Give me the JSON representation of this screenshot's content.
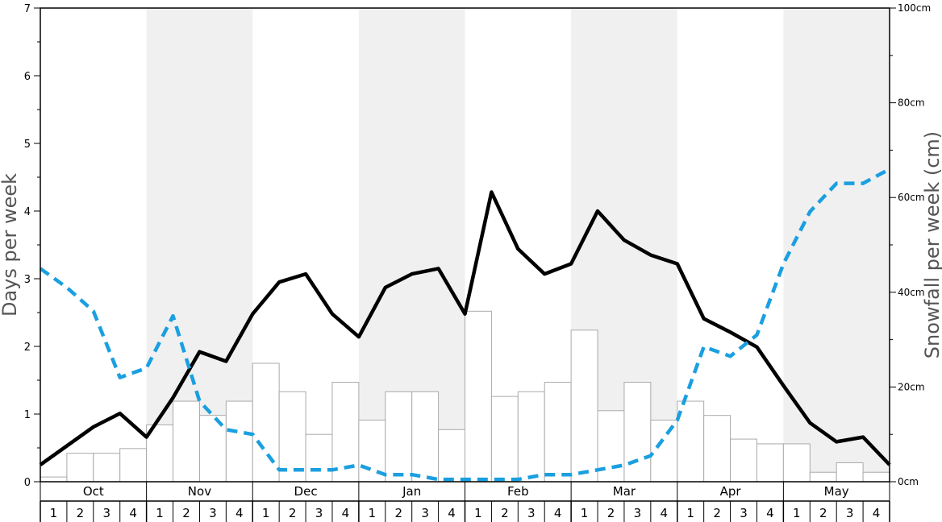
{
  "chart_data": {
    "type": "bar",
    "y_left": {
      "label": "Days per week",
      "range": [
        0,
        7
      ],
      "ticks": [
        "0",
        "1",
        "2",
        "3",
        "4",
        "5",
        "6",
        "7"
      ]
    },
    "y_right": {
      "label": "Snowfall per week (cm)",
      "range": [
        0,
        100
      ],
      "ticks": [
        "0cm",
        "20cm",
        "40cm",
        "60cm",
        "80cm",
        "100cm"
      ]
    },
    "months": [
      "Oct",
      "Nov",
      "Dec",
      "Jan",
      "Feb",
      "Mar",
      "Apr",
      "May"
    ],
    "weeks": [
      "1",
      "2",
      "3",
      "4"
    ],
    "shaded_months": [
      "Nov",
      "Jan",
      "Mar",
      "May"
    ],
    "colors": {
      "bars_fill": "#ffffff",
      "bars_stroke": "#aaaaaa",
      "solid_line": "#000000",
      "dashed_line": "#1a9fe0",
      "shade": "#f0f0f0"
    },
    "series": [
      {
        "kind": "bar",
        "axis": "right",
        "values": [
          1,
          6,
          6,
          7,
          12,
          17,
          14,
          17,
          25,
          19,
          10,
          21,
          13,
          19,
          19,
          11,
          36,
          18,
          19,
          21,
          32,
          15,
          21,
          13,
          17,
          14,
          9,
          8,
          8,
          2,
          4,
          2
        ]
      },
      {
        "kind": "line",
        "style": "solid",
        "axis": "left",
        "values": [
          0.25,
          0.53,
          0.81,
          1.01,
          0.66,
          1.24,
          1.92,
          1.78,
          2.48,
          2.95,
          3.07,
          2.48,
          2.14,
          2.87,
          3.07,
          3.15,
          2.48,
          4.28,
          3.44,
          3.07,
          3.22,
          4.0,
          3.57,
          3.35,
          3.22,
          2.41,
          2.21,
          1.99,
          1.42,
          0.87,
          0.59,
          0.66,
          0.25
        ]
      },
      {
        "kind": "line",
        "style": "dashed",
        "axis": "right",
        "values": [
          45,
          41,
          36,
          22,
          24,
          35,
          17,
          11,
          10,
          2.5,
          2.5,
          2.5,
          3.5,
          1.5,
          1.5,
          0.5,
          0.5,
          0.5,
          0.5,
          1.5,
          1.5,
          2.5,
          3.5,
          5.5,
          13,
          28.5,
          26.5,
          31,
          46,
          57,
          63,
          63,
          66
        ]
      }
    ]
  }
}
